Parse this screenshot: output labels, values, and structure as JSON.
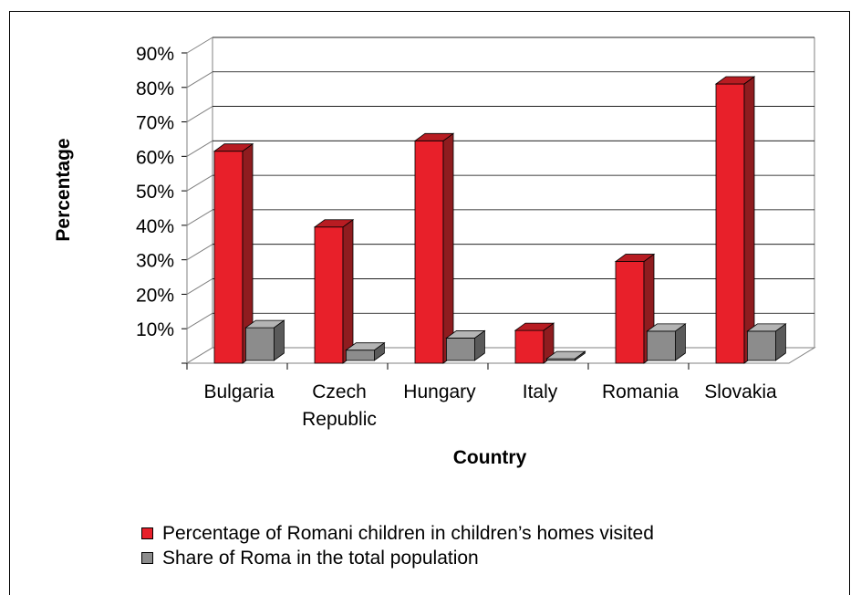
{
  "chart_data": {
    "type": "bar",
    "categories": [
      "Bulgaria",
      "Czech Republic",
      "Hungary",
      "Italy",
      "Romania",
      "Slovakia"
    ],
    "category_lines": [
      [
        "Bulgaria"
      ],
      [
        "Czech",
        "Republic"
      ],
      [
        "Hungary"
      ],
      [
        "Italy"
      ],
      [
        "Romania"
      ],
      [
        "Slovakia"
      ]
    ],
    "series": [
      {
        "name": "Percentage of Romani children in children’s homes visited",
        "values": [
          61.5,
          39.5,
          64.5,
          9.5,
          29.5,
          81
        ],
        "color": "#e8202a",
        "side_color": "#8f1c1f",
        "top_color": "#b81c22"
      },
      {
        "name": "Share of Roma in the total population",
        "values": [
          9.5,
          3,
          6.5,
          0.5,
          8.5,
          8.5
        ],
        "color": "#8c8c8c",
        "side_color": "#5a5a5a",
        "top_color": "#b4b4b4"
      }
    ],
    "xlabel": "Country",
    "ylabel": "Percentage",
    "ylim": [
      0,
      90
    ],
    "yticks": [
      10,
      20,
      30,
      40,
      50,
      60,
      70,
      80,
      90
    ],
    "ytick_labels": [
      "10%",
      "20%",
      "30%",
      "40%",
      "50%",
      "60%",
      "70%",
      "80%",
      "90%"
    ],
    "grid": true,
    "three_d": true,
    "legend_position": "bottom"
  }
}
